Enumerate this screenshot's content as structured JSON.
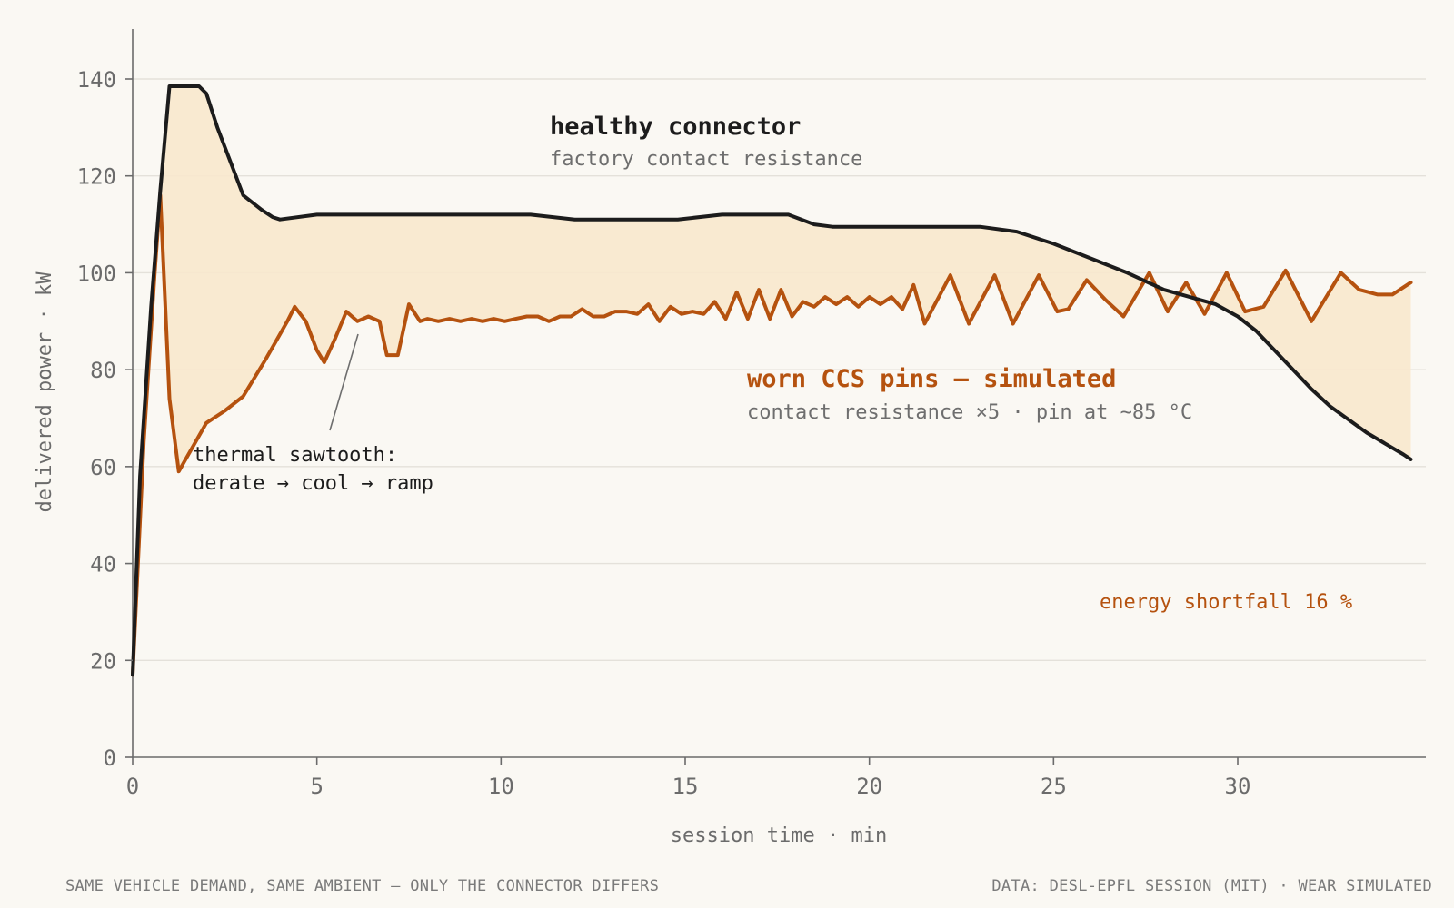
{
  "chart_data": {
    "type": "line",
    "xlabel": "session time · min",
    "ylabel": "delivered power · kW",
    "xlim": [
      0,
      34.7
    ],
    "ylim": [
      0,
      150
    ],
    "x_ticks": [
      0,
      5,
      10,
      15,
      20,
      25,
      30
    ],
    "y_ticks": [
      0,
      20,
      40,
      60,
      80,
      100,
      120,
      140
    ],
    "grid": "horizontal",
    "fill_between": {
      "color": "#f8e6c8",
      "between": [
        "healthy connector",
        "worn CCS pins — simulated"
      ]
    },
    "series": [
      {
        "name": "healthy connector",
        "subtitle": "factory contact resistance",
        "color": "#1c1c1c",
        "points": [
          [
            0,
            17
          ],
          [
            0.2,
            58
          ],
          [
            0.5,
            93
          ],
          [
            0.75,
            117
          ],
          [
            1.0,
            138.5
          ],
          [
            1.8,
            138.5
          ],
          [
            2.0,
            137
          ],
          [
            2.3,
            130
          ],
          [
            2.8,
            120
          ],
          [
            3.0,
            116
          ],
          [
            3.5,
            113
          ],
          [
            3.8,
            111.5
          ],
          [
            4.0,
            111
          ],
          [
            5.0,
            112
          ],
          [
            10.8,
            112
          ],
          [
            12.0,
            111
          ],
          [
            14.8,
            111
          ],
          [
            16.0,
            112
          ],
          [
            17.8,
            112
          ],
          [
            18.5,
            110
          ],
          [
            19.0,
            109.5
          ],
          [
            23.0,
            109.5
          ],
          [
            24.0,
            108.5
          ],
          [
            25.0,
            106
          ],
          [
            27.0,
            100
          ],
          [
            28.0,
            96.5
          ],
          [
            28.7,
            95
          ],
          [
            29.4,
            93.5
          ],
          [
            30.0,
            91
          ],
          [
            30.5,
            88
          ],
          [
            31.0,
            84
          ],
          [
            31.5,
            80
          ],
          [
            32.0,
            76
          ],
          [
            32.5,
            72.5
          ],
          [
            33.5,
            67
          ],
          [
            34.5,
            62.5
          ],
          [
            34.7,
            61.5
          ]
        ]
      },
      {
        "name": "worn CCS pins — simulated",
        "subtitle": "contact resistance ×5 · pin at ~85 °C",
        "color": "#b5520f",
        "points": [
          [
            0,
            17
          ],
          [
            0.3,
            65
          ],
          [
            0.6,
            100
          ],
          [
            0.75,
            116
          ],
          [
            1.0,
            74
          ],
          [
            1.25,
            59
          ],
          [
            1.7,
            65
          ],
          [
            2.0,
            69
          ],
          [
            2.5,
            71.5
          ],
          [
            3.0,
            74.5
          ],
          [
            3.6,
            82
          ],
          [
            3.9,
            86
          ],
          [
            4.2,
            90
          ],
          [
            4.4,
            93
          ],
          [
            4.7,
            90
          ],
          [
            5.0,
            84
          ],
          [
            5.2,
            81.5
          ],
          [
            5.5,
            86.5
          ],
          [
            5.8,
            92
          ],
          [
            6.1,
            90
          ],
          [
            6.4,
            91
          ],
          [
            6.7,
            90
          ],
          [
            6.9,
            83
          ],
          [
            7.2,
            83
          ],
          [
            7.5,
            93.5
          ],
          [
            7.8,
            90
          ],
          [
            8.0,
            90.5
          ],
          [
            8.3,
            90
          ],
          [
            8.6,
            90.5
          ],
          [
            8.9,
            90
          ],
          [
            9.2,
            90.5
          ],
          [
            9.5,
            90
          ],
          [
            9.8,
            90.5
          ],
          [
            10.1,
            90
          ],
          [
            10.4,
            90.5
          ],
          [
            10.7,
            91
          ],
          [
            11.0,
            91
          ],
          [
            11.3,
            90
          ],
          [
            11.6,
            91
          ],
          [
            11.9,
            91
          ],
          [
            12.2,
            92.5
          ],
          [
            12.5,
            91
          ],
          [
            12.8,
            91
          ],
          [
            13.1,
            92
          ],
          [
            13.4,
            92
          ],
          [
            13.7,
            91.5
          ],
          [
            14.0,
            93.5
          ],
          [
            14.3,
            90
          ],
          [
            14.6,
            93
          ],
          [
            14.9,
            91.5
          ],
          [
            15.2,
            92
          ],
          [
            15.5,
            91.5
          ],
          [
            15.8,
            94
          ],
          [
            16.1,
            90.5
          ],
          [
            16.4,
            96
          ],
          [
            16.7,
            90.5
          ],
          [
            17.0,
            96.5
          ],
          [
            17.3,
            90.5
          ],
          [
            17.6,
            96.5
          ],
          [
            17.9,
            91
          ],
          [
            18.2,
            94
          ],
          [
            18.5,
            93
          ],
          [
            18.8,
            95
          ],
          [
            19.1,
            93.5
          ],
          [
            19.4,
            95
          ],
          [
            19.7,
            93
          ],
          [
            20.0,
            95
          ],
          [
            20.3,
            93.5
          ],
          [
            20.6,
            95
          ],
          [
            20.9,
            92.5
          ],
          [
            21.2,
            97.5
          ],
          [
            21.5,
            89.5
          ],
          [
            22.2,
            99.5
          ],
          [
            22.7,
            89.5
          ],
          [
            23.4,
            99.5
          ],
          [
            23.9,
            89.5
          ],
          [
            24.6,
            99.5
          ],
          [
            25.1,
            92
          ],
          [
            25.4,
            92.5
          ],
          [
            25.9,
            98.5
          ],
          [
            26.4,
            94.5
          ],
          [
            26.9,
            91
          ],
          [
            27.6,
            100
          ],
          [
            28.1,
            92
          ],
          [
            28.6,
            98
          ],
          [
            29.1,
            91.5
          ],
          [
            29.7,
            100
          ],
          [
            30.2,
            92
          ],
          [
            30.7,
            93
          ],
          [
            31.3,
            100.5
          ],
          [
            32.0,
            90
          ],
          [
            32.8,
            100
          ],
          [
            33.3,
            96.5
          ],
          [
            33.8,
            95.5
          ],
          [
            34.2,
            95.5
          ],
          [
            34.7,
            98
          ]
        ]
      }
    ],
    "annotations": [
      {
        "text": "thermal sawtooth:",
        "text2": "derate → cool → ramp"
      },
      {
        "text": "energy shortfall 16 %"
      }
    ]
  },
  "footer": {
    "left": "SAME VEHICLE DEMAND, SAME AMBIENT — ONLY THE CONNECTOR DIFFERS",
    "right": "DATA: DESL-EPFL SESSION (MIT) · WEAR SIMULATED"
  }
}
